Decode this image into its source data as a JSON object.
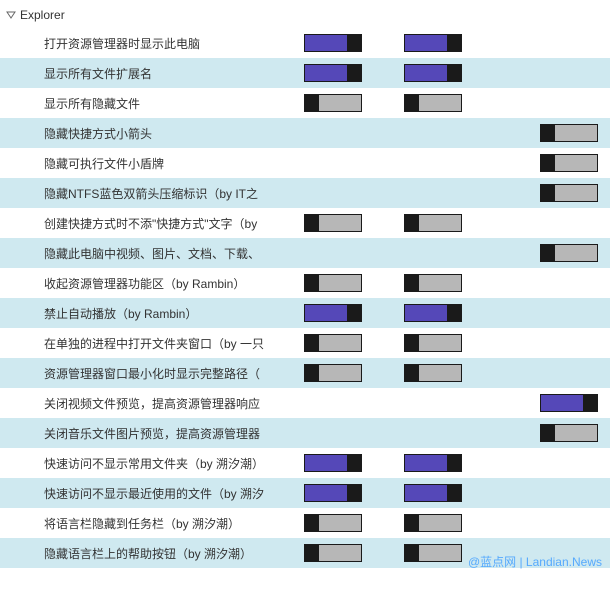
{
  "colors": {
    "row_alt_bg": "#cfe9f0",
    "toggle_on_fill": "#5548b8",
    "toggle_off_fill": "#b7b7b7",
    "toggle_knob": "#1a1a1a",
    "toggle_border": "#1a1a1a",
    "text": "#333333",
    "background": "#ffffff",
    "watermark": "#4aa3ff"
  },
  "section": {
    "title": "Explorer"
  },
  "rows": [
    {
      "label": "打开资源管理器时显示此电脑",
      "alt": false,
      "toggles": [
        {
          "state": "on"
        },
        {
          "state": "on"
        }
      ],
      "align": "mid"
    },
    {
      "label": "显示所有文件扩展名",
      "alt": true,
      "toggles": [
        {
          "state": "on"
        },
        {
          "state": "on"
        }
      ],
      "align": "mid"
    },
    {
      "label": "显示所有隐藏文件",
      "alt": false,
      "toggles": [
        {
          "state": "off"
        },
        {
          "state": "off"
        }
      ],
      "align": "mid"
    },
    {
      "label": "隐藏快捷方式小箭头",
      "alt": true,
      "toggles": [
        {
          "state": "off"
        }
      ],
      "align": "right"
    },
    {
      "label": "隐藏可执行文件小盾牌",
      "alt": false,
      "toggles": [
        {
          "state": "off"
        }
      ],
      "align": "right"
    },
    {
      "label": "隐藏NTFS蓝色双箭头压缩标识（by IT之",
      "alt": true,
      "toggles": [
        {
          "state": "off"
        }
      ],
      "align": "right"
    },
    {
      "label": "创建快捷方式时不添\"快捷方式\"文字（by",
      "alt": false,
      "toggles": [
        {
          "state": "off"
        },
        {
          "state": "off"
        }
      ],
      "align": "mid"
    },
    {
      "label": "隐藏此电脑中视频、图片、文档、下载、",
      "alt": true,
      "toggles": [
        {
          "state": "off"
        }
      ],
      "align": "right"
    },
    {
      "label": "收起资源管理器功能区（by Rambin）",
      "alt": false,
      "toggles": [
        {
          "state": "off"
        },
        {
          "state": "off"
        }
      ],
      "align": "mid"
    },
    {
      "label": "禁止自动播放（by Rambin）",
      "alt": true,
      "toggles": [
        {
          "state": "on"
        },
        {
          "state": "on"
        }
      ],
      "align": "mid"
    },
    {
      "label": "在单独的进程中打开文件夹窗口（by 一只",
      "alt": false,
      "toggles": [
        {
          "state": "off"
        },
        {
          "state": "off"
        }
      ],
      "align": "mid"
    },
    {
      "label": "资源管理器窗口最小化时显示完整路径（",
      "alt": true,
      "toggles": [
        {
          "state": "off"
        },
        {
          "state": "off"
        }
      ],
      "align": "mid"
    },
    {
      "label": "关闭视频文件预览，提高资源管理器响应",
      "alt": false,
      "toggles": [
        {
          "state": "on"
        }
      ],
      "align": "right"
    },
    {
      "label": "关闭音乐文件图片预览，提高资源管理器",
      "alt": true,
      "toggles": [
        {
          "state": "off"
        }
      ],
      "align": "right"
    },
    {
      "label": "快速访问不显示常用文件夹（by 溯汐潮）",
      "alt": false,
      "toggles": [
        {
          "state": "on"
        },
        {
          "state": "on"
        }
      ],
      "align": "mid"
    },
    {
      "label": "快速访问不显示最近使用的文件（by 溯汐",
      "alt": true,
      "toggles": [
        {
          "state": "on"
        },
        {
          "state": "on"
        }
      ],
      "align": "mid"
    },
    {
      "label": "将语言栏隐藏到任务栏（by 溯汐潮）",
      "alt": false,
      "toggles": [
        {
          "state": "off"
        },
        {
          "state": "off"
        }
      ],
      "align": "mid"
    },
    {
      "label": "隐藏语言栏上的帮助按钮（by 溯汐潮）",
      "alt": true,
      "toggles": [
        {
          "state": "off"
        },
        {
          "state": "off"
        }
      ],
      "align": "mid"
    }
  ],
  "watermark": "@蓝点网 | Landian.News"
}
